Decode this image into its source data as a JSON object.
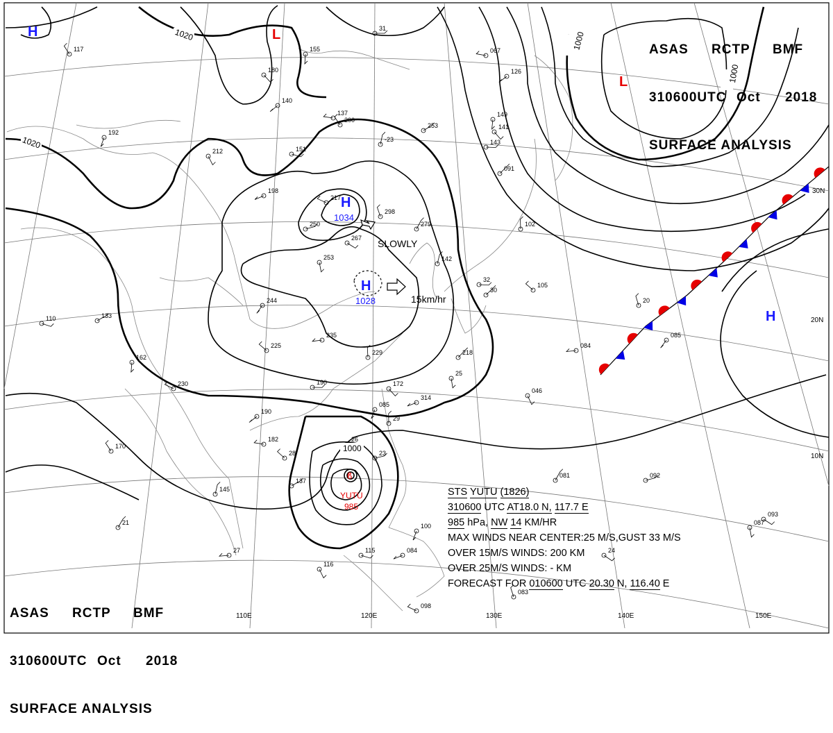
{
  "header": {
    "agency": "ASAS",
    "station": "RCTP",
    "center": "BMF",
    "time": "310600UTC",
    "month": "Oct",
    "year": "2018",
    "product": "SURFACE ANALYSIS"
  },
  "isobars": {
    "labels": [
      "1020",
      "1020",
      "1000",
      "1000",
      "1000"
    ]
  },
  "pressure_centers": [
    {
      "type": "H",
      "value": "",
      "color": "#1a1aff"
    },
    {
      "type": "L",
      "value": "",
      "color": "#e60000"
    },
    {
      "type": "L",
      "value": "",
      "color": "#e60000"
    },
    {
      "type": "H",
      "value": "1034",
      "color": "#1a1aff"
    },
    {
      "type": "H",
      "value": "1028",
      "color": "#1a1aff"
    },
    {
      "type": "H",
      "value": "",
      "color": "#1a1aff"
    }
  ],
  "motion": {
    "high_1034": "SLOWLY",
    "high_1028": "15km/hr"
  },
  "typhoon": {
    "name": "YUTU",
    "pressure": "985",
    "color": "#e60000",
    "info": {
      "line1_a": "STS",
      "line1_b": "YUTU",
      "line1_c": "(1826)",
      "line2_a": "310600",
      "line2_b": "UTC",
      "line2_c": "AT18.0 N,",
      "line2_d": "117.7 E",
      "line3_a": "985",
      "line3_b": "hPa,",
      "line3_c": "NW",
      "line3_d": "14",
      "line3_e": "KM/HR",
      "line4": "MAX WINDS NEAR CENTER:25 M/S,GUST 33 M/S",
      "line5": "OVER 15M/S WINDS: 200 KM",
      "line6": "OVER 25M/S WINDS: - KM",
      "line7_a": "FORECAST FOR",
      "line7_b": "010600",
      "line7_c": "UTC",
      "line7_d": "20.30",
      "line7_e": "N,",
      "line7_f": "116.40",
      "line7_g": "E"
    }
  },
  "graticule": {
    "lon_labels": [
      "110E",
      "120E",
      "130E",
      "140E",
      "150E"
    ],
    "lat_labels": [
      "30N",
      "20N",
      "10N"
    ]
  },
  "front": {
    "type": "stationary",
    "warm_color": "#e60000",
    "cold_color": "#0000e6"
  },
  "station_labels": [
    "31",
    "180",
    "155",
    "140",
    "137",
    "200",
    "-23",
    "253",
    "151",
    "212",
    "192",
    "198",
    "217",
    "298",
    "279",
    "250",
    "267",
    "253",
    "244",
    "235",
    "225",
    "229",
    "218",
    "190",
    "172",
    "162",
    "190",
    "182",
    "170",
    "145",
    "137",
    "115",
    "116",
    "100",
    "084",
    "098",
    "083",
    "081",
    "092",
    "093",
    "087",
    "085",
    "084",
    "105",
    "102",
    "091",
    "143",
    "141",
    "149",
    "126",
    "067",
    "117",
    "142",
    "133",
    "110",
    "046",
    "085",
    "314",
    "230",
    "20",
    "21",
    "23",
    "24",
    "25",
    "26",
    "27",
    "28",
    "29",
    "30",
    "32"
  ]
}
